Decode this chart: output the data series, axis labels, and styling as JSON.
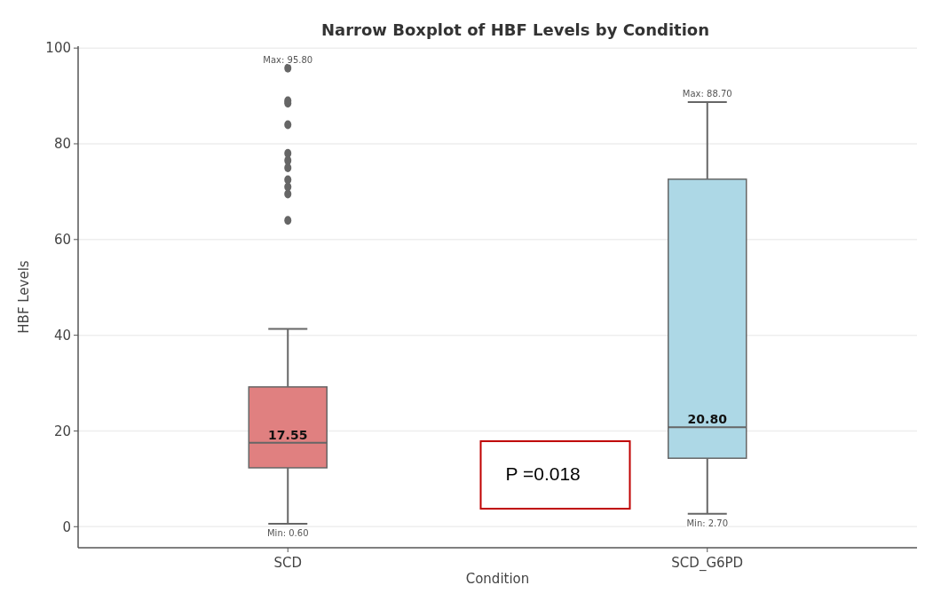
{
  "chart_data": {
    "type": "box",
    "title": "Narrow Boxplot of HBF Levels by Condition",
    "xlabel": "Condition",
    "ylabel": "HBF Levels",
    "categories": [
      "SCD",
      "SCD_G6PD"
    ],
    "series": [
      {
        "colors": [
          "#e08080",
          "#add8e6"
        ],
        "boxes": [
          {
            "low": 0.6,
            "q1": 12.3,
            "median": 17.55,
            "q3": 29.2,
            "high": 41.3,
            "outliers": [
              64,
              69.5,
              71,
              72.5,
              75,
              76.5,
              78,
              84,
              88.5,
              89,
              95.8
            ]
          },
          {
            "low": 2.7,
            "q1": 14.3,
            "median": 20.8,
            "q3": 72.6,
            "high": 88.7
          }
        ]
      }
    ],
    "ylim": [
      -4.4,
      100.4
    ],
    "yticks": [
      0,
      20,
      40,
      60,
      80,
      100
    ],
    "grid": "y",
    "annotations": [
      "Max: 95.80",
      {
        "text": "Min: 0.60",
        "x": "SCD",
        "y": 0.6
      },
      {
        "text": "17.55",
        "x": "SCD",
        "y": 17.55
      },
      {
        "text": "Max: 88.70",
        "x": "SCD_G6PD",
        "y": 88.7
      },
      {
        "text": "Min: 2.70",
        "x": "SCD_G6PD",
        "y": 2.7
      },
      {
        "text": "20.80",
        "x": "SCD_G6PD",
        "y": 20.8
      },
      "P =0.018"
    ]
  }
}
